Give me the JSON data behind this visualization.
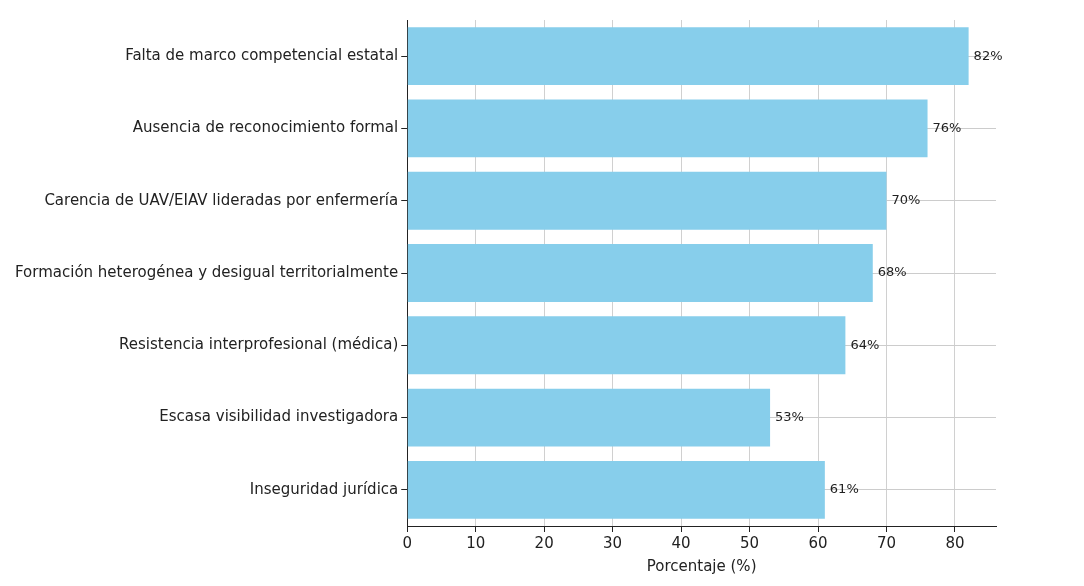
{
  "chart_data": {
    "type": "bar",
    "orientation": "horizontal",
    "xlabel": "Porcentaje (%)",
    "categories": [
      "Falta de marco competencial estatal",
      "Ausencia de reconocimiento formal",
      "Carencia de UAV/EIAV lideradas por enfermería",
      "Formación heterogénea y desigual territorialmente",
      "Resistencia interprofesional (médica)",
      "Escasa visibilidad investigadora",
      "Inseguridad jurídica"
    ],
    "values": [
      82,
      76,
      70,
      68,
      64,
      53,
      61
    ],
    "value_labels": [
      "82%",
      "76%",
      "70%",
      "68%",
      "64%",
      "53%",
      "61%"
    ],
    "color": "#87ceeb",
    "xlim": [
      0,
      86
    ],
    "xticks": [
      0,
      10,
      20,
      30,
      40,
      50,
      60,
      70,
      80
    ],
    "grid": true
  }
}
